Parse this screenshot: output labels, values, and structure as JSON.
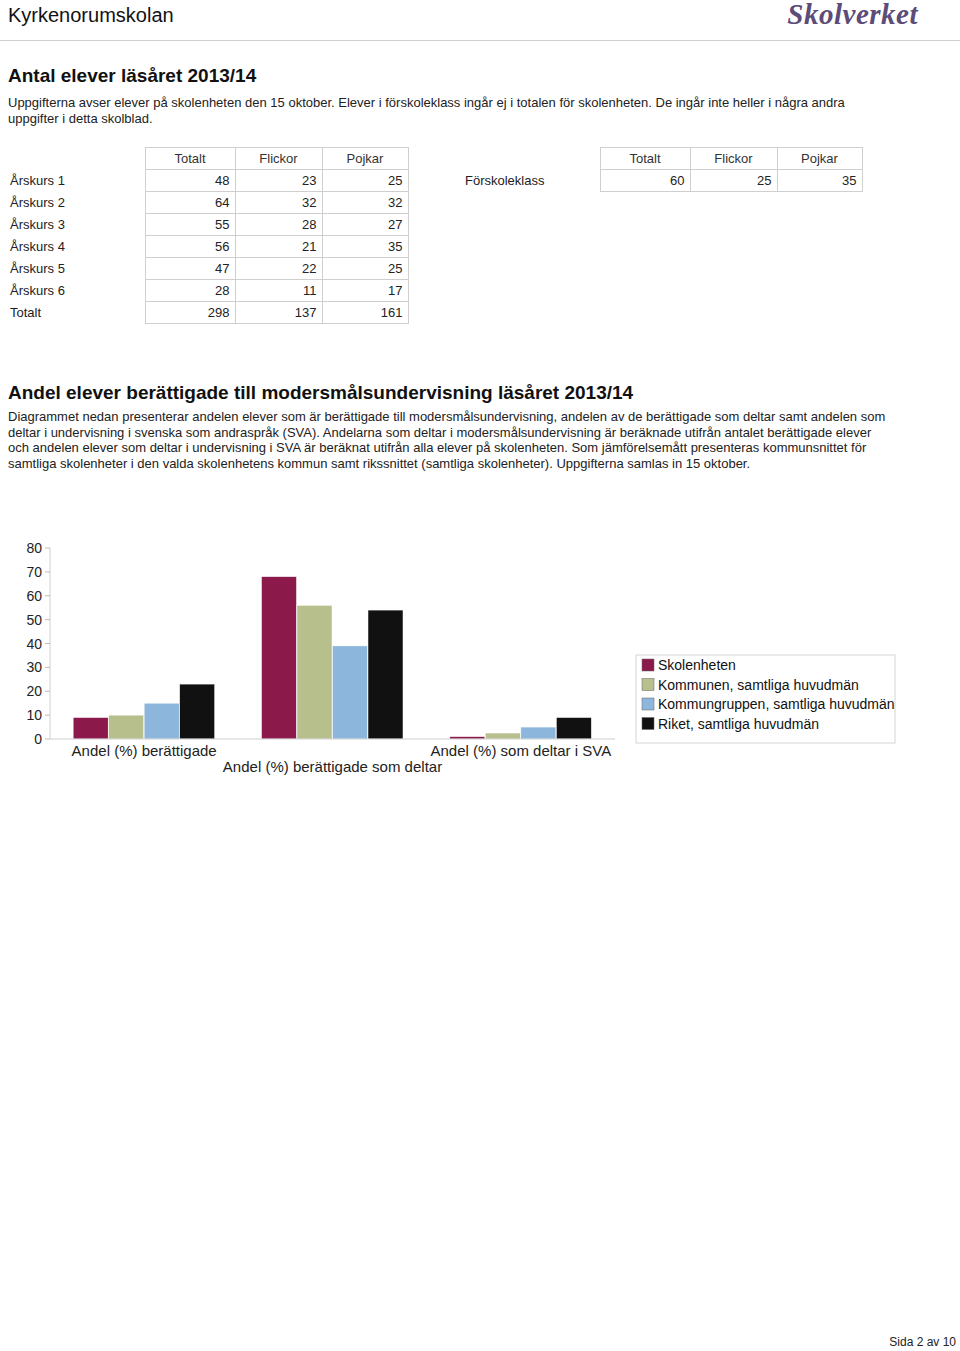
{
  "header": {
    "school": "Kyrkenorumskolan",
    "logo": "Skolverket"
  },
  "students": {
    "title": "Antal elever läsåret 2013/14",
    "text": "Uppgifterna avser elever på skolenheten den 15 oktober. Elever i förskoleklass ingår ej i totalen för skolenheten. De ingår inte heller i några andra uppgifter i detta skolblad.",
    "table": {
      "columns": [
        "Totalt",
        "Flickor",
        "Pojkar"
      ],
      "rows": [
        [
          "Årskurs 1",
          48,
          23,
          25
        ],
        [
          "Årskurs 2",
          64,
          32,
          32
        ],
        [
          "Årskurs 3",
          55,
          28,
          27
        ],
        [
          "Årskurs 4",
          56,
          21,
          35
        ],
        [
          "Årskurs 5",
          47,
          22,
          25
        ],
        [
          "Årskurs 6",
          28,
          11,
          17
        ],
        [
          "Totalt",
          298,
          137,
          161
        ]
      ]
    },
    "preschool": {
      "columns": [
        "Totalt",
        "Flickor",
        "Pojkar"
      ],
      "rows": [
        [
          "Förskoleklass",
          60,
          25,
          35
        ]
      ]
    }
  },
  "mother_tongue": {
    "title": "Andel elever berättigade till modersmålsundervisning läsåret 2013/14",
    "text": "Diagrammet nedan presenterar andelen elever som är berättigade till modersmålsundervisning, andelen av de berättigade som deltar samt andelen som deltar i undervisning i svenska som andraspråk (SVA). Andelarna som deltar i modersmålsundervisning är beräknade utifrån antalet berättigade elever och andelen elever som deltar i undervisning i SVA är beräknat utifrån alla elever på skolenheten. Som jämförelsemått presenteras kommunsnittet för samtliga skolenheter i den valda skolenhetens kommun samt rikssnittet (samtliga skolenheter). Uppgifterna samlas in 15 oktober."
  },
  "chart_data": {
    "type": "bar",
    "categories": [
      "Andel (%) berättigade",
      "Andel (%) berättigade som deltar",
      "Andel (%) som deltar i SVA"
    ],
    "series": [
      {
        "name": "Skolenheten",
        "color": "#8b1a4b",
        "values": [
          9,
          68,
          1
        ]
      },
      {
        "name": "Kommunen, samtliga huvudmän",
        "color": "#b7bf8c",
        "values": [
          10,
          56,
          2.5
        ]
      },
      {
        "name": "Kommungruppen, samtliga huvudmän",
        "color": "#8cb6dc",
        "values": [
          15,
          39,
          5
        ]
      },
      {
        "name": "Riket, samtliga huvudmän",
        "color": "#111111",
        "values": [
          23,
          54,
          9
        ]
      }
    ],
    "ylim": [
      0,
      80
    ],
    "yticks": [
      0,
      10,
      20,
      30,
      40,
      50,
      60,
      70,
      80
    ],
    "grid": false,
    "legend": "right"
  },
  "footer": {
    "page": "Sida 2 av 10"
  }
}
